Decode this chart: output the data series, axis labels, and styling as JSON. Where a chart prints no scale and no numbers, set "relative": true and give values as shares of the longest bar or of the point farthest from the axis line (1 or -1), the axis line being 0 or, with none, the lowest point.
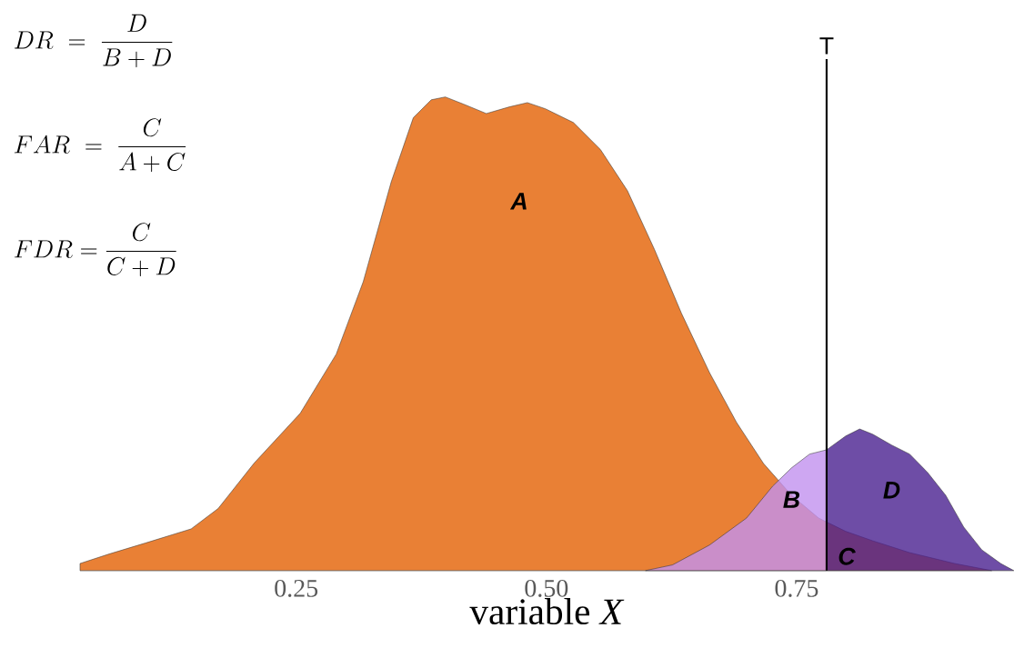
{
  "chart_data": {
    "type": "area",
    "relative": true,
    "xlabel": "variable *X*",
    "xlim": [
      0.034,
      0.967
    ],
    "xticks": [
      {
        "value": 0.25,
        "label": "0.25"
      },
      {
        "value": 0.5,
        "label": "0.50"
      },
      {
        "value": 0.75,
        "label": "0.75"
      }
    ],
    "series": [
      {
        "color": "#e98035",
        "x": [
          0.034,
          0.063,
          0.099,
          0.145,
          0.172,
          0.208,
          0.254,
          0.29,
          0.317,
          0.345,
          0.367,
          0.385,
          0.399,
          0.417,
          0.44,
          0.463,
          0.481,
          0.499,
          0.527,
          0.554,
          0.581,
          0.608,
          0.635,
          0.663,
          0.69,
          0.717,
          0.745,
          0.772,
          0.799,
          0.826,
          0.863,
          0.908,
          0.945
        ],
        "values": [
          0.015,
          0.035,
          0.058,
          0.088,
          0.131,
          0.227,
          0.332,
          0.457,
          0.61,
          0.821,
          0.956,
          0.994,
          1.0,
          0.985,
          0.965,
          0.979,
          0.988,
          0.975,
          0.946,
          0.889,
          0.802,
          0.678,
          0.543,
          0.418,
          0.313,
          0.226,
          0.159,
          0.111,
          0.083,
          0.063,
          0.038,
          0.015,
          0.0
        ]
      },
      {
        "color": "#c291ef",
        "x": [
          0.599,
          0.626,
          0.663,
          0.7,
          0.726,
          0.745,
          0.763,
          0.78
        ],
        "values": [
          0.0,
          0.012,
          0.054,
          0.111,
          0.178,
          0.217,
          0.246,
          0.255
        ]
      },
      {
        "color": "#4a2090",
        "x": [
          0.78,
          0.799,
          0.813,
          0.826,
          0.845,
          0.863,
          0.881,
          0.899,
          0.917,
          0.935,
          0.954,
          0.967
        ],
        "values": [
          0.255,
          0.284,
          0.299,
          0.288,
          0.265,
          0.246,
          0.207,
          0.159,
          0.092,
          0.044,
          0.015,
          0.0
        ]
      }
    ],
    "ref_lines": [
      {
        "axis": "x",
        "value": 0.78,
        "label": "T",
        "color": "#000000"
      }
    ],
    "annotations": [
      "DR\\ =\\ \\frac{D}{B + D}",
      "FAR\\ =\\ \\frac{C}{A + C}",
      "FDR = \\frac{C}{C + D}",
      "A",
      "B",
      "C",
      "D"
    ]
  }
}
